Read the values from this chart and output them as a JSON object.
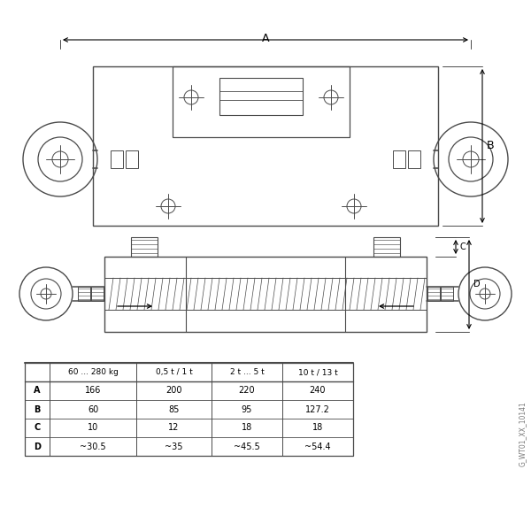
{
  "bg_color": "#ffffff",
  "line_color": "#4a4a4a",
  "table_headers": [
    "",
    "60 ... 280 kg",
    "0,5 t / 1 t",
    "2 t ... 5 t",
    "10 t / 13 t"
  ],
  "table_rows": [
    [
      "A",
      "166",
      "200",
      "220",
      "240"
    ],
    [
      "B",
      "60",
      "85",
      "95",
      "127.2"
    ],
    [
      "C",
      "10",
      "12",
      "18",
      "18"
    ],
    [
      "D",
      "~30.5",
      "~35",
      "~45.5",
      "~54.4"
    ]
  ],
  "dim_label_A": "A",
  "dim_label_B": "B",
  "dim_label_C": "C",
  "dim_label_D": "D",
  "watermark": "G_WT01_XX_10141",
  "fig_width": 6.0,
  "fig_height": 6.0
}
